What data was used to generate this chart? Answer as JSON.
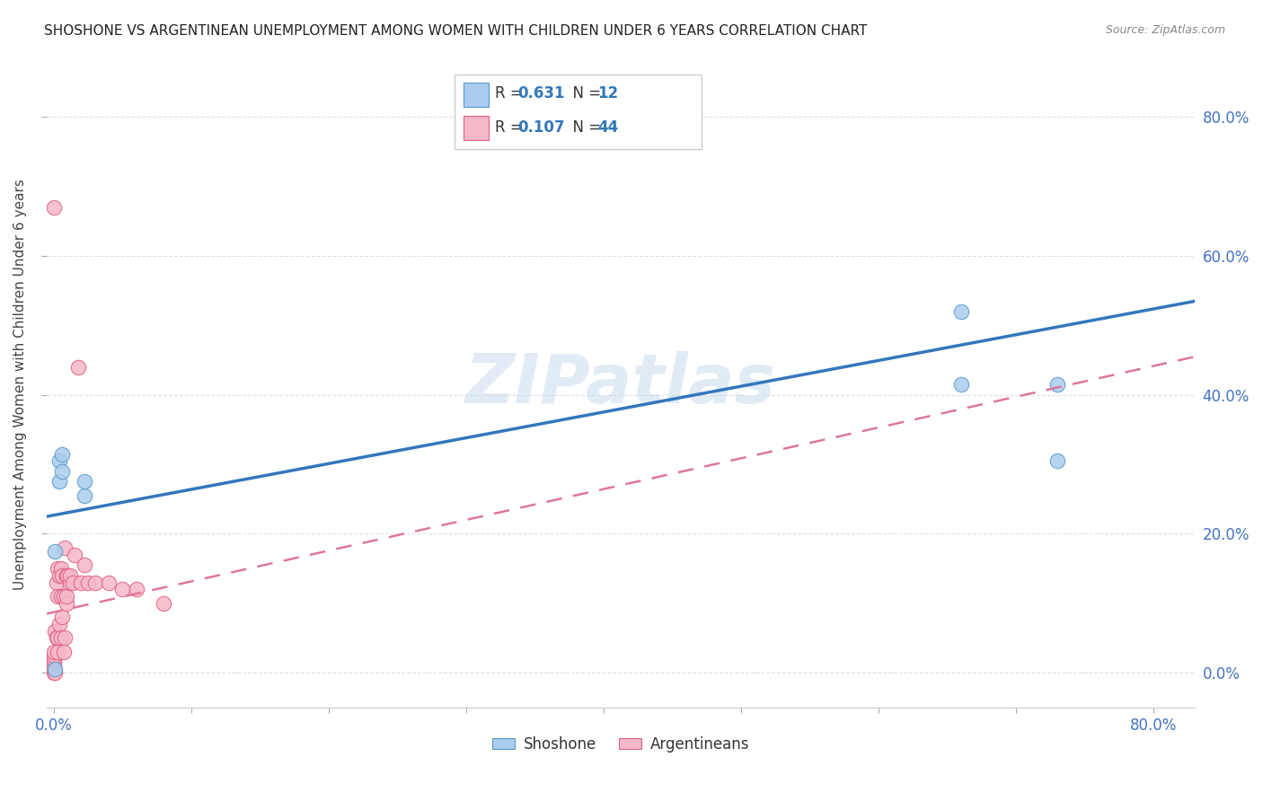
{
  "title": "SHOSHONE VS ARGENTINEAN UNEMPLOYMENT AMONG WOMEN WITH CHILDREN UNDER 6 YEARS CORRELATION CHART",
  "source": "Source: ZipAtlas.com",
  "ylabel": "Unemployment Among Women with Children Under 6 years",
  "xlim": [
    -0.005,
    0.83
  ],
  "ylim": [
    -0.05,
    0.88
  ],
  "shoshone_color": "#aaccee",
  "argentinean_color": "#f5b8c8",
  "shoshone_edge_color": "#5599cc",
  "argentinean_edge_color": "#e06080",
  "shoshone_line_color": "#3377bb",
  "argentinean_line_color": "#dd7799",
  "shoshone_x": [
    0.001,
    0.001,
    0.004,
    0.004,
    0.006,
    0.006,
    0.022,
    0.022,
    0.66,
    0.66,
    0.73,
    0.73
  ],
  "shoshone_y": [
    0.005,
    0.175,
    0.275,
    0.305,
    0.29,
    0.315,
    0.255,
    0.275,
    0.52,
    0.415,
    0.415,
    0.305
  ],
  "argentinean_x": [
    0.0,
    0.0,
    0.0,
    0.0,
    0.0,
    0.0,
    0.0,
    0.0,
    0.001,
    0.001,
    0.002,
    0.002,
    0.003,
    0.003,
    0.003,
    0.003,
    0.004,
    0.004,
    0.005,
    0.005,
    0.005,
    0.006,
    0.006,
    0.007,
    0.007,
    0.008,
    0.008,
    0.009,
    0.009,
    0.009,
    0.01,
    0.012,
    0.012,
    0.014,
    0.015,
    0.018,
    0.02,
    0.022,
    0.025,
    0.03,
    0.04,
    0.05,
    0.06,
    0.08
  ],
  "argentinean_y": [
    0.0,
    0.005,
    0.01,
    0.015,
    0.02,
    0.025,
    0.03,
    0.67,
    0.0,
    0.06,
    0.05,
    0.13,
    0.03,
    0.05,
    0.11,
    0.15,
    0.07,
    0.14,
    0.05,
    0.11,
    0.15,
    0.08,
    0.14,
    0.03,
    0.11,
    0.05,
    0.18,
    0.1,
    0.11,
    0.14,
    0.14,
    0.13,
    0.14,
    0.13,
    0.17,
    0.44,
    0.13,
    0.155,
    0.13,
    0.13,
    0.13,
    0.12,
    0.12,
    0.1
  ],
  "shoshone_line_x0": -0.005,
  "shoshone_line_x1": 0.83,
  "shoshone_line_y0": 0.225,
  "shoshone_line_y1": 0.535,
  "argentinean_line_x0": -0.005,
  "argentinean_line_x1": 0.83,
  "argentinean_line_y0": 0.085,
  "argentinean_line_y1": 0.455,
  "background_color": "#ffffff",
  "grid_color": "#e0e0e0",
  "title_fontsize": 11,
  "axis_tick_color": "#4472c4",
  "watermark": "ZIPatlas"
}
